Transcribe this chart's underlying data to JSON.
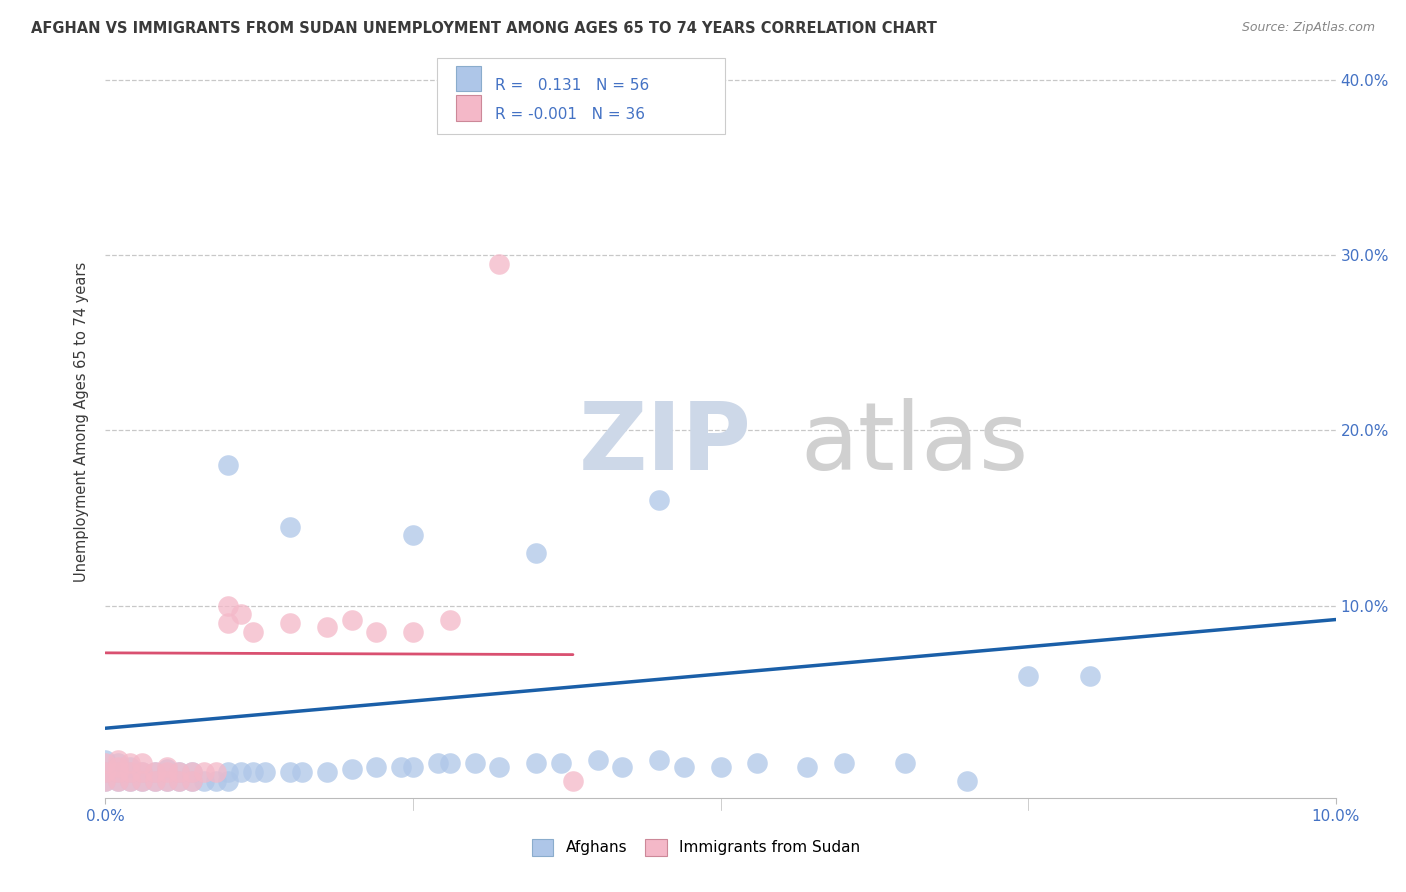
{
  "title": "AFGHAN VS IMMIGRANTS FROM SUDAN UNEMPLOYMENT AMONG AGES 65 TO 74 YEARS CORRELATION CHART",
  "source": "Source: ZipAtlas.com",
  "ylabel": "Unemployment Among Ages 65 to 74 years",
  "xlim": [
    0.0,
    0.1
  ],
  "ylim": [
    -0.01,
    0.42
  ],
  "afghan_R": 0.131,
  "afghan_N": 56,
  "sudan_R": -0.001,
  "sudan_N": 36,
  "afghan_color": "#aec6e8",
  "sudan_color": "#f4b8c8",
  "afghan_line_color": "#1a5fa8",
  "sudan_line_color": "#d95070",
  "grid_color": "#c8c8c8",
  "title_color": "#3a3a3a",
  "axis_label_color": "#4472c4",
  "legend_text_color": "#4472c4",
  "watermark_zip_color": "#cdd8e8",
  "watermark_atlas_color": "#d0d0d0",
  "afghan_x": [
    0.0,
    0.0,
    0.0,
    0.001,
    0.001,
    0.001,
    0.002,
    0.002,
    0.002,
    0.003,
    0.003,
    0.004,
    0.004,
    0.005,
    0.005,
    0.006,
    0.006,
    0.007,
    0.007,
    0.008,
    0.009,
    0.01,
    0.01,
    0.011,
    0.012,
    0.013,
    0.015,
    0.016,
    0.018,
    0.02,
    0.022,
    0.024,
    0.025,
    0.027,
    0.028,
    0.03,
    0.032,
    0.035,
    0.037,
    0.04,
    0.042,
    0.045,
    0.047,
    0.05,
    0.053,
    0.057,
    0.06,
    0.065,
    0.07,
    0.075,
    0.08,
    0.01,
    0.015,
    0.025,
    0.035,
    0.045
  ],
  "afghan_y": [
    0.0,
    0.005,
    0.012,
    0.0,
    0.005,
    0.01,
    0.0,
    0.005,
    0.008,
    0.0,
    0.005,
    0.0,
    0.005,
    0.0,
    0.007,
    0.0,
    0.005,
    0.0,
    0.005,
    0.0,
    0.0,
    0.0,
    0.005,
    0.005,
    0.005,
    0.005,
    0.005,
    0.005,
    0.005,
    0.007,
    0.008,
    0.008,
    0.008,
    0.01,
    0.01,
    0.01,
    0.008,
    0.01,
    0.01,
    0.012,
    0.008,
    0.012,
    0.008,
    0.008,
    0.01,
    0.008,
    0.01,
    0.01,
    0.0,
    0.06,
    0.06,
    0.18,
    0.145,
    0.14,
    0.13,
    0.16
  ],
  "sudan_x": [
    0.0,
    0.0,
    0.0,
    0.001,
    0.001,
    0.001,
    0.001,
    0.002,
    0.002,
    0.002,
    0.003,
    0.003,
    0.003,
    0.004,
    0.004,
    0.005,
    0.005,
    0.005,
    0.006,
    0.006,
    0.007,
    0.007,
    0.008,
    0.009,
    0.01,
    0.01,
    0.011,
    0.012,
    0.015,
    0.018,
    0.02,
    0.022,
    0.025,
    0.028,
    0.032,
    0.038
  ],
  "sudan_y": [
    0.0,
    0.005,
    0.01,
    0.0,
    0.005,
    0.008,
    0.012,
    0.0,
    0.005,
    0.01,
    0.0,
    0.005,
    0.01,
    0.0,
    0.005,
    0.0,
    0.005,
    0.008,
    0.0,
    0.005,
    0.0,
    0.005,
    0.005,
    0.005,
    0.09,
    0.1,
    0.095,
    0.085,
    0.09,
    0.088,
    0.092,
    0.085,
    0.085,
    0.092,
    0.295,
    0.0
  ],
  "af_trend_x": [
    0.0,
    0.1
  ],
  "af_trend_y": [
    0.03,
    0.092
  ],
  "su_trend_x": [
    0.0,
    0.038
  ],
  "su_trend_y": [
    0.073,
    0.072
  ]
}
